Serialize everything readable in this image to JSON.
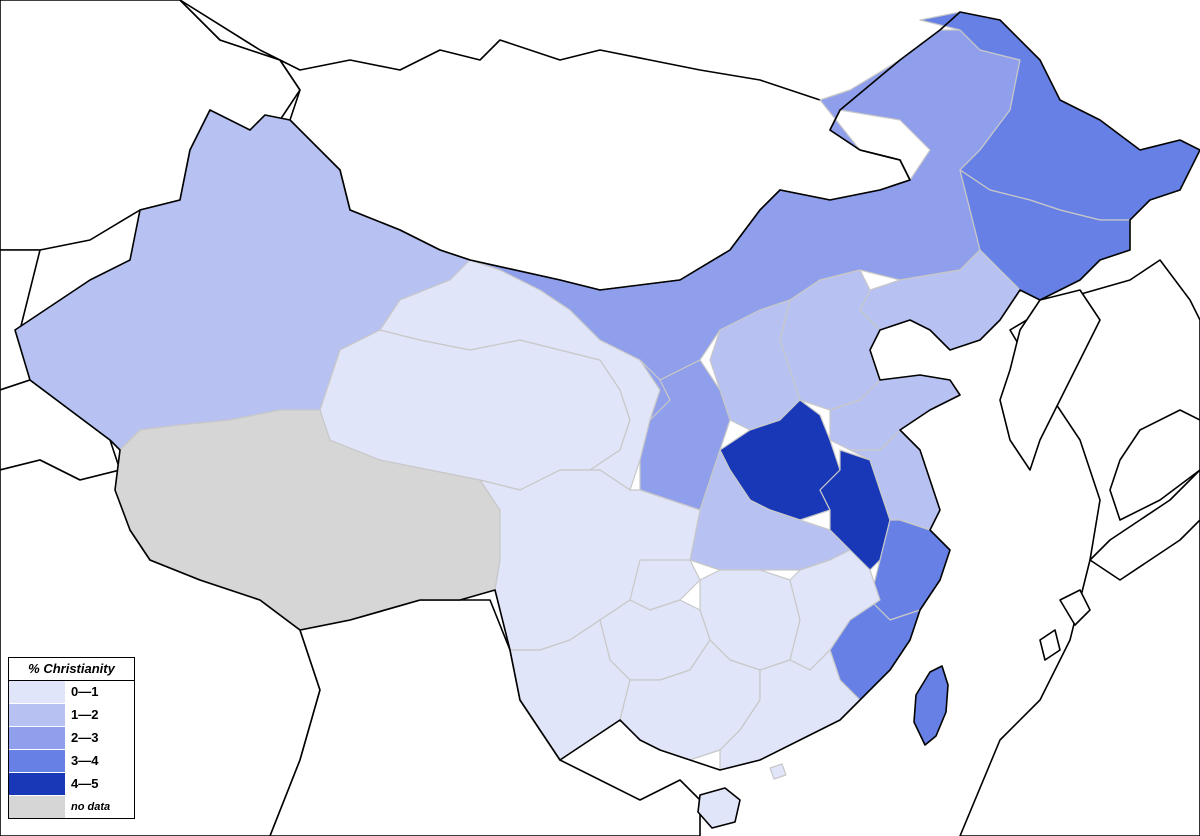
{
  "legend": {
    "title": "% Christianity",
    "items": [
      {
        "label": "0—1",
        "color": "#e1e5f9"
      },
      {
        "label": "1—2",
        "color": "#b7c2f2"
      },
      {
        "label": "2—3",
        "color": "#8f9fec"
      },
      {
        "label": "3—4",
        "color": "#6680e6"
      },
      {
        "label": "4—5",
        "color": "#1838b8"
      },
      {
        "label": "no data",
        "color": "#d6d6d6"
      }
    ]
  }
}
